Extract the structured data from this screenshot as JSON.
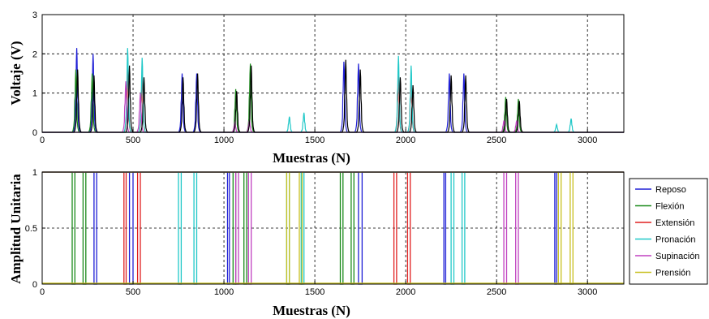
{
  "chart_data": [
    {
      "type": "line",
      "title": "",
      "xlabel": "Muestras (N)",
      "ylabel": "Voltaje (V)",
      "xlim": [
        0,
        3200
      ],
      "ylim": [
        0,
        3
      ],
      "xticks": [
        0,
        500,
        1000,
        1500,
        2000,
        2500,
        3000
      ],
      "yticks": [
        0,
        1,
        2,
        3
      ],
      "grid": true,
      "series": [
        {
          "color": "#1f1fd6",
          "peaks": [
            [
              190,
              2.15
            ],
            [
              280,
              2.0
            ],
            [
              770,
              1.5
            ],
            [
              850,
              1.5
            ],
            [
              1660,
              1.8
            ],
            [
              1740,
              1.75
            ],
            [
              2240,
              1.5
            ],
            [
              2320,
              1.5
            ]
          ]
        },
        {
          "color": "#1a8a1a",
          "peaks": [
            [
              185,
              1.6
            ],
            [
              275,
              1.5
            ],
            [
              1065,
              1.1
            ],
            [
              1145,
              1.75
            ],
            [
              2550,
              0.9
            ],
            [
              2620,
              0.85
            ]
          ]
        },
        {
          "color": "#e02020",
          "peaks": [
            [
              470,
              1.6
            ],
            [
              550,
              1.45
            ],
            [
              1960,
              1.45
            ],
            [
              2030,
              1.45
            ]
          ]
        },
        {
          "color": "#20c8c8",
          "peaks": [
            [
              470,
              2.15
            ],
            [
              550,
              1.9
            ],
            [
              1360,
              0.4
            ],
            [
              1440,
              0.5
            ],
            [
              1960,
              1.95
            ],
            [
              2030,
              1.7
            ],
            [
              2830,
              0.2
            ],
            [
              2910,
              0.35
            ]
          ]
        },
        {
          "color": "#c040c0",
          "peaks": [
            [
              460,
              1.3
            ],
            [
              540,
              1.0
            ],
            [
              1060,
              0.25
            ],
            [
              1140,
              0.3
            ],
            [
              2540,
              0.3
            ],
            [
              2610,
              0.3
            ]
          ]
        },
        {
          "color": "#000000",
          "peaks": [
            [
              195,
              1.6
            ],
            [
              285,
              1.45
            ],
            [
              480,
              1.7
            ],
            [
              560,
              1.4
            ],
            [
              775,
              1.4
            ],
            [
              855,
              1.5
            ],
            [
              1070,
              1.05
            ],
            [
              1150,
              1.7
            ],
            [
              1670,
              1.85
            ],
            [
              1750,
              1.6
            ],
            [
              1970,
              1.4
            ],
            [
              2040,
              1.2
            ],
            [
              2250,
              1.45
            ],
            [
              2330,
              1.45
            ],
            [
              2555,
              0.85
            ],
            [
              2625,
              0.8
            ]
          ]
        }
      ]
    },
    {
      "type": "line",
      "title": "",
      "xlabel": "Muestras (N)",
      "ylabel": "Amplitud Unitaria",
      "xlim": [
        0,
        3200
      ],
      "ylim": [
        0,
        1
      ],
      "xticks": [
        0,
        500,
        1000,
        1500,
        2000,
        2500,
        3000
      ],
      "yticks": [
        0,
        0.5,
        1
      ],
      "ytick_labels": [
        "0",
        "0.5",
        "1"
      ],
      "grid": true,
      "legend_position": "right",
      "series": [
        {
          "name": "Reposo",
          "color": "#1f1fd6",
          "low_intervals": [
            [
              300,
              480
            ],
            [
              500,
              1020
            ],
            [
              1340,
              1740
            ],
            [
              1760,
              1960
            ],
            [
              2220,
              2510
            ],
            [
              2830,
              3200
            ]
          ],
          "dips": [
            [
              285,
              300
            ],
            [
              480,
              500
            ],
            [
              1020,
              1030
            ],
            [
              1740,
              1760
            ],
            [
              2210,
              2220
            ],
            [
              2820,
              2830
            ]
          ]
        },
        {
          "name": "Flexión",
          "color": "#1a8a1a",
          "dips": [
            [
              165,
              180
            ],
            [
              225,
              240
            ],
            [
              1050,
              1065
            ],
            [
              1110,
              1125
            ],
            [
              1640,
              1655
            ],
            [
              1700,
              1715
            ]
          ]
        },
        {
          "name": "Extensión",
          "color": "#e02020",
          "dips": [
            [
              450,
              462
            ],
            [
              525,
              540
            ],
            [
              1935,
              1950
            ],
            [
              2010,
              2025
            ]
          ]
        },
        {
          "name": "Pronación",
          "color": "#20c8c8",
          "dips": [
            [
              750,
              765
            ],
            [
              835,
              850
            ],
            [
              1345,
              1360
            ],
            [
              1425,
              1440
            ],
            [
              2250,
              2265
            ],
            [
              2310,
              2325
            ]
          ]
        },
        {
          "name": "Supinación",
          "color": "#c040c0",
          "dips": [
            [
              1065,
              1080
            ],
            [
              1135,
              1150
            ],
            [
              2540,
              2555
            ],
            [
              2605,
              2620
            ]
          ]
        },
        {
          "name": "Prensión",
          "color": "#c8c020",
          "dips": [
            [
              1345,
              1360
            ],
            [
              1415,
              1430
            ],
            [
              2840,
              2855
            ],
            [
              2905,
              2920
            ]
          ]
        }
      ]
    }
  ],
  "legend": {
    "items": [
      {
        "label": "Reposo",
        "color": "#1f1fd6"
      },
      {
        "label": "Flexión",
        "color": "#1a8a1a"
      },
      {
        "label": "Extensión",
        "color": "#e02020"
      },
      {
        "label": "Pronación",
        "color": "#20c8c8"
      },
      {
        "label": "Supinación",
        "color": "#c040c0"
      },
      {
        "label": "Prensión",
        "color": "#c8c020"
      }
    ]
  }
}
